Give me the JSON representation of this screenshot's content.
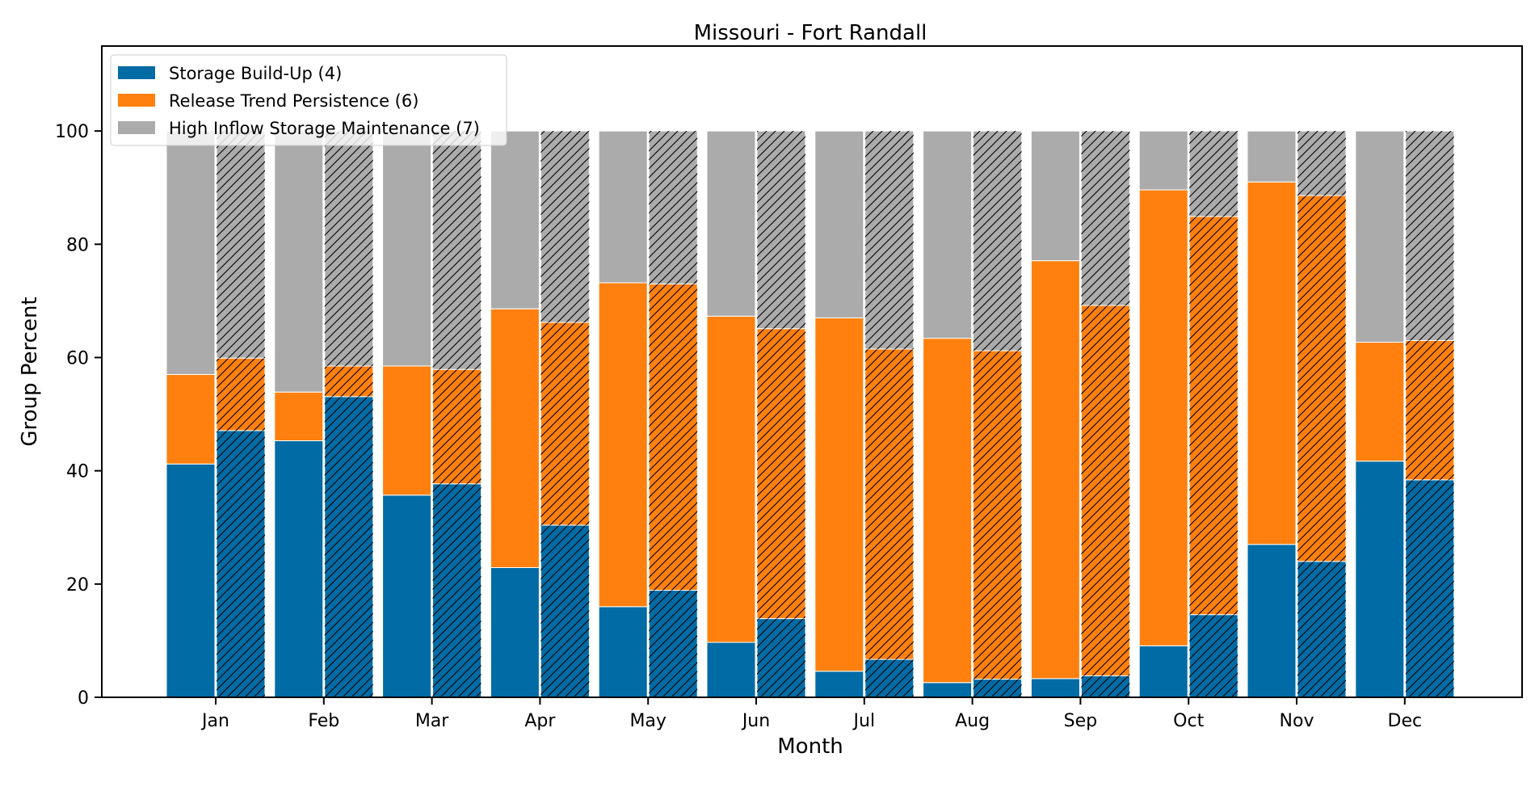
{
  "chart_data": {
    "type": "bar",
    "stacked": true,
    "title": "Missouri - Fort Randall",
    "xlabel": "Month",
    "ylabel": "Group Percent",
    "ylim": [
      0,
      115
    ],
    "yticks": [
      0,
      20,
      40,
      60,
      80,
      100
    ],
    "categories": [
      "Jan",
      "Feb",
      "Mar",
      "Apr",
      "May",
      "Jun",
      "Jul",
      "Aug",
      "Sep",
      "Oct",
      "Nov",
      "Dec"
    ],
    "grid": false,
    "legend_position": "top-left",
    "bars_per_category": [
      "plain",
      "hatched"
    ],
    "series": [
      {
        "name": "Storage Build-Up (4)",
        "color": "#006ba4",
        "plain": [
          41.2,
          45.3,
          35.7,
          22.9,
          16.0,
          9.7,
          4.6,
          2.6,
          3.3,
          9.1,
          27.0,
          41.7
        ],
        "hatched": [
          47.1,
          53.1,
          37.7,
          30.4,
          18.9,
          13.9,
          6.7,
          3.2,
          3.8,
          14.6,
          24.0,
          38.4
        ]
      },
      {
        "name": "Release Trend Persistence (6)",
        "color": "#ff800e",
        "plain": [
          15.8,
          8.6,
          22.8,
          45.7,
          57.2,
          57.6,
          62.4,
          60.8,
          73.8,
          80.5,
          64.0,
          21.0
        ],
        "hatched": [
          12.8,
          5.4,
          20.2,
          35.8,
          54.1,
          51.2,
          54.8,
          58.0,
          65.4,
          70.3,
          64.6,
          24.6
        ]
      },
      {
        "name": "High Inflow Storage Maintenance (7)",
        "color": "#ababab",
        "plain": [
          43.0,
          46.1,
          41.5,
          31.4,
          26.8,
          32.7,
          33.0,
          36.6,
          22.9,
          10.4,
          9.0,
          37.3
        ],
        "hatched": [
          40.1,
          41.5,
          42.1,
          33.8,
          27.0,
          34.9,
          38.5,
          38.8,
          30.8,
          15.1,
          11.4,
          37.0
        ]
      }
    ]
  }
}
